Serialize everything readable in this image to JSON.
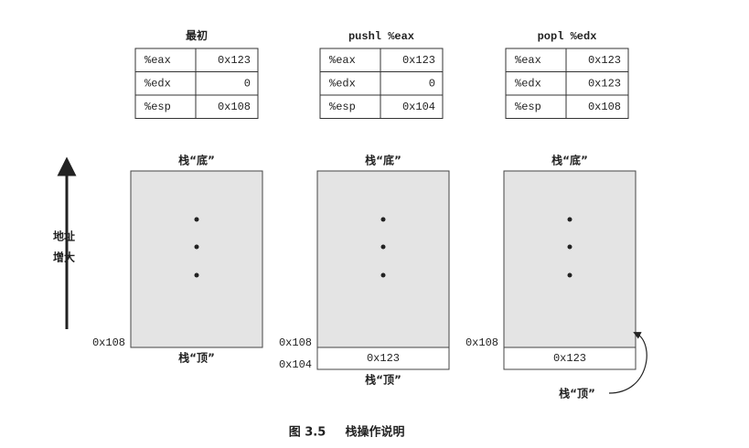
{
  "axis_label": [
    "地址",
    "增大"
  ],
  "panels": [
    {
      "title": "最初",
      "registers": [
        [
          "%eax",
          "0x123"
        ],
        [
          "%edx",
          "0"
        ],
        [
          "%esp",
          "0x108"
        ]
      ],
      "stack_bottom": "栈“底”",
      "stack_top": "栈“顶”",
      "addresses": [
        "0x108"
      ],
      "cells": []
    },
    {
      "title": "pushl %eax",
      "registers": [
        [
          "%eax",
          "0x123"
        ],
        [
          "%edx",
          "0"
        ],
        [
          "%esp",
          "0x104"
        ]
      ],
      "stack_bottom": "栈“底”",
      "stack_top": "栈“顶”",
      "addresses": [
        "0x108",
        "0x104"
      ],
      "cells": [
        "0x123"
      ]
    },
    {
      "title": "popl %edx",
      "registers": [
        [
          "%eax",
          "0x123"
        ],
        [
          "%edx",
          "0x123"
        ],
        [
          "%esp",
          "0x108"
        ]
      ],
      "stack_bottom": "栈“底”",
      "stack_top": "栈“顶”",
      "addresses": [
        "0x108"
      ],
      "cells": [
        "0x123"
      ]
    }
  ],
  "caption": {
    "number": "图 3.5",
    "text": "栈操作说明"
  }
}
